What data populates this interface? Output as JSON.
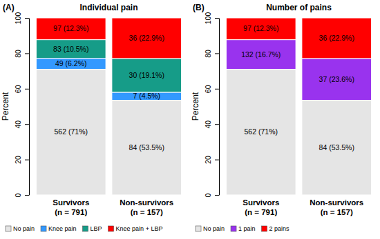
{
  "chart_data": [
    {
      "type": "bar",
      "stacked": true,
      "data_labels": true,
      "legend": "bottom",
      "annotations": [
        "(A)"
      ],
      "title": "Individual pain",
      "y_label": "Percent",
      "categories": [
        "Survivors\n(n = 791)",
        "Non-survivors\n(n = 157)"
      ],
      "ylim": [
        0,
        100
      ],
      "yticks": [
        0,
        20,
        40,
        60,
        80,
        100
      ],
      "series": [
        {
          "name": "No pain",
          "color": "#e5e5e5",
          "values": [
            71,
            53.5
          ],
          "value_labels": [
            "562 (71%)",
            "84 (53.5%)"
          ]
        },
        {
          "name": "Knee pain",
          "color": "#3399ff",
          "values": [
            6.2,
            4.5
          ],
          "value_labels": [
            "49 (6.2%)",
            "7 (4.5%)"
          ]
        },
        {
          "name": "LBP",
          "color": "#169c88",
          "values": [
            10.5,
            19.1
          ],
          "value_labels": [
            "83 (10.5%)",
            "30 (19.1%)"
          ]
        },
        {
          "name": "Knee pain + LBP",
          "color": "#ff0000",
          "values": [
            12.3,
            22.9
          ],
          "value_labels": [
            "97 (12.3%)",
            "36 (22.9%)"
          ]
        }
      ]
    },
    {
      "type": "bar",
      "stacked": true,
      "data_labels": true,
      "legend": "bottom",
      "annotations": [
        "(B)"
      ],
      "title": "Number of pains",
      "y_label": "Percent",
      "categories": [
        "Survivors\n(n = 791)",
        "Non-survivors\n(n = 157)"
      ],
      "ylim": [
        0,
        100
      ],
      "yticks": [
        0,
        20,
        40,
        60,
        80,
        100
      ],
      "series": [
        {
          "name": "No pain",
          "color": "#e5e5e5",
          "values": [
            71,
            53.5
          ],
          "value_labels": [
            "562 (71%)",
            "84 (53.5%)"
          ]
        },
        {
          "name": "1 pain",
          "color": "#9933ee",
          "values": [
            16.7,
            23.6
          ],
          "value_labels": [
            "132 (16.7%)",
            "37 (23.6%)"
          ]
        },
        {
          "name": "2 pains",
          "color": "#ff0000",
          "values": [
            12.3,
            22.9
          ],
          "value_labels": [
            "97 (12.3%)",
            "36 (22.9%)"
          ]
        }
      ]
    }
  ]
}
